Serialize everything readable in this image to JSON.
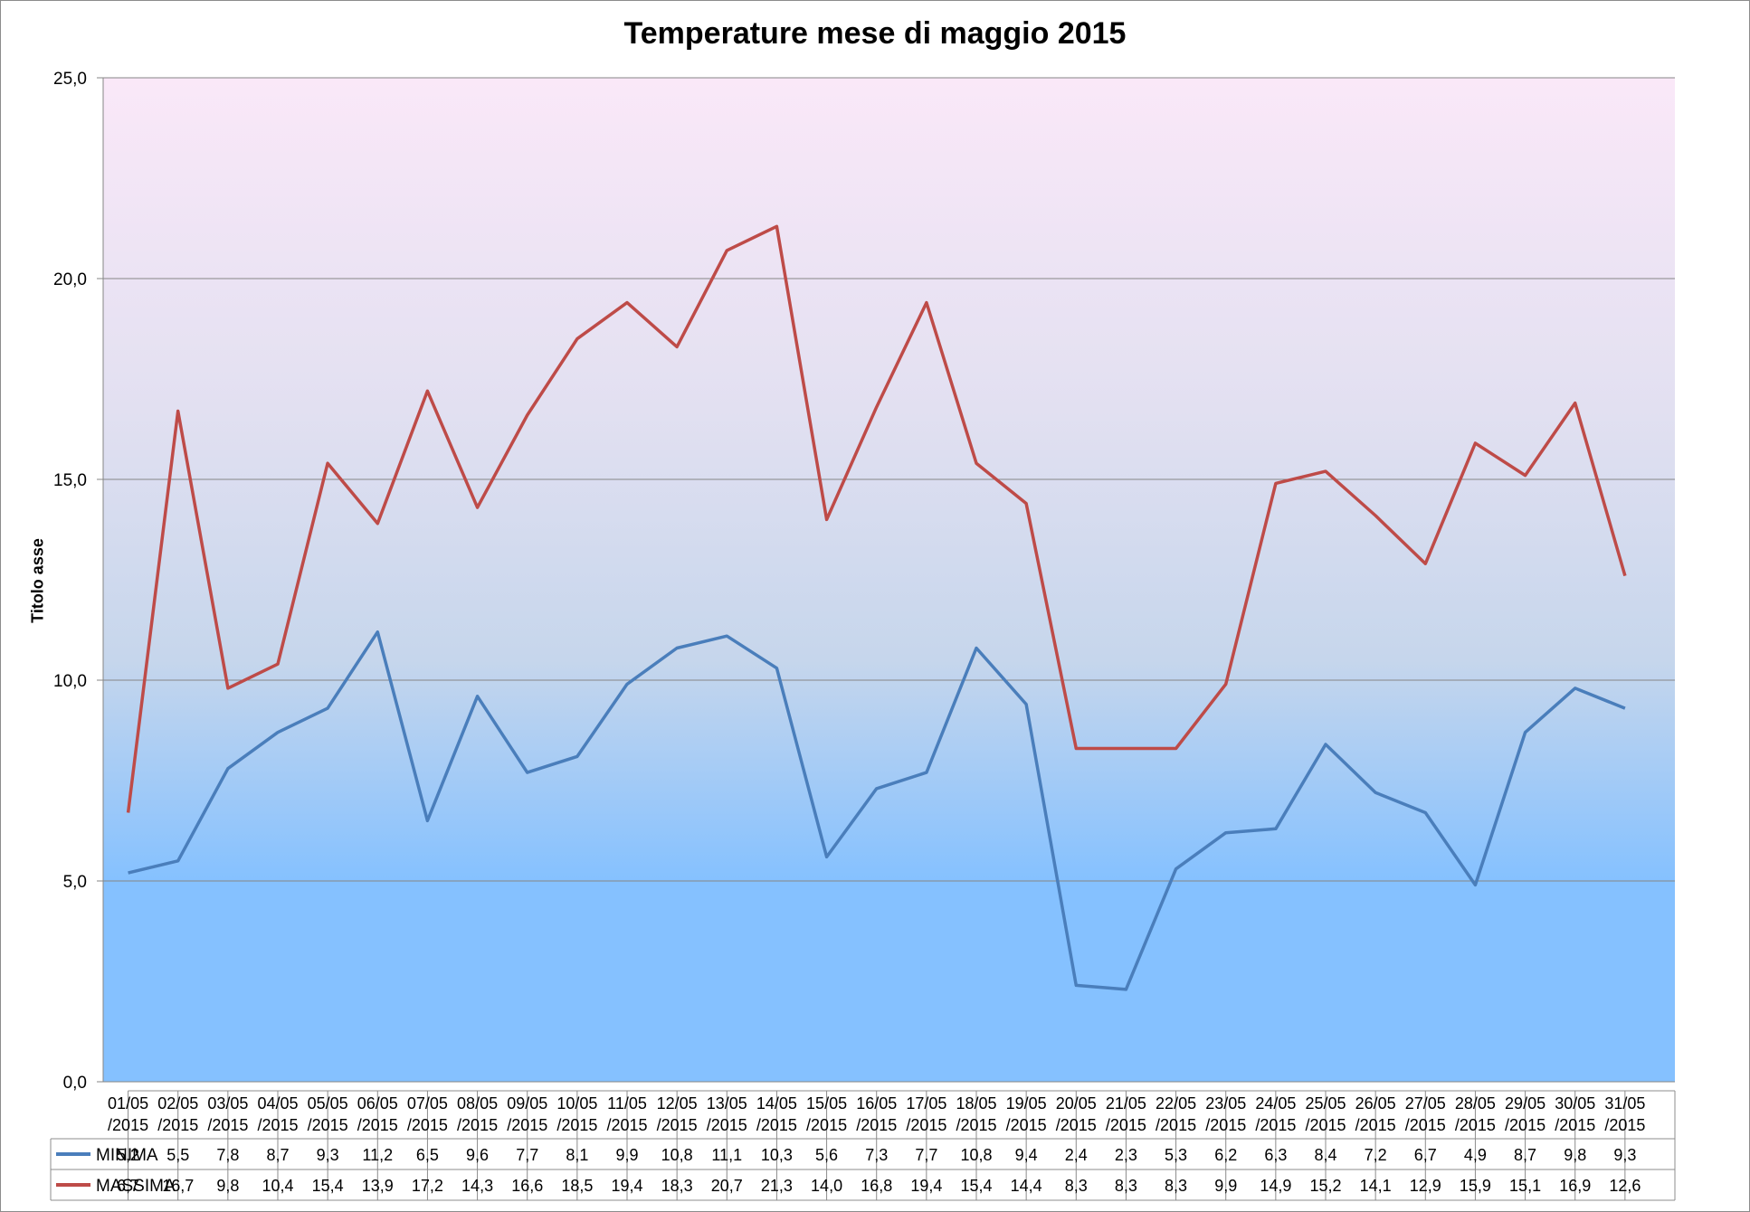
{
  "chart_data": {
    "type": "line",
    "title": "Temperature mese di maggio 2015",
    "xlabel": "",
    "ylabel": "Titolo asse",
    "ylim": [
      0,
      25
    ],
    "yticks": [
      "0,0",
      "5,0",
      "10,0",
      "15,0",
      "20,0",
      "25,0"
    ],
    "grid": true,
    "legend": "data-table",
    "background_gradient": {
      "top": "#fae8f8",
      "bottom": "#85c1ff"
    },
    "categories": [
      "01/05/2015",
      "02/05/2015",
      "03/05/2015",
      "04/05/2015",
      "05/05/2015",
      "06/05/2015",
      "07/05/2015",
      "08/05/2015",
      "09/05/2015",
      "10/05/2015",
      "11/05/2015",
      "12/05/2015",
      "13/05/2015",
      "14/05/2015",
      "15/05/2015",
      "16/05/2015",
      "17/05/2015",
      "18/05/2015",
      "19/05/2015",
      "20/05/2015",
      "21/05/2015",
      "22/05/2015",
      "23/05/2015",
      "24/05/2015",
      "25/05/2015",
      "26/05/2015",
      "27/05/2015",
      "28/05/2015",
      "29/05/2015",
      "30/05/2015",
      "31/05/2015"
    ],
    "series": [
      {
        "name": "MINIMA",
        "color": "#4a7ebb",
        "values": [
          5.2,
          5.5,
          7.8,
          8.7,
          9.3,
          11.2,
          6.5,
          9.6,
          7.7,
          8.1,
          9.9,
          10.8,
          11.1,
          10.3,
          5.6,
          7.3,
          7.7,
          10.8,
          9.4,
          2.4,
          2.3,
          5.3,
          6.2,
          6.3,
          8.4,
          7.2,
          6.7,
          4.9,
          8.7,
          9.8,
          9.3
        ],
        "labels": [
          "5,2",
          "5,5",
          "7,8",
          "8,7",
          "9,3",
          "11,2",
          "6,5",
          "9,6",
          "7,7",
          "8,1",
          "9,9",
          "10,8",
          "11,1",
          "10,3",
          "5,6",
          "7,3",
          "7,7",
          "10,8",
          "9,4",
          "2,4",
          "2,3",
          "5,3",
          "6,2",
          "6,3",
          "8,4",
          "7,2",
          "6,7",
          "4,9",
          "8,7",
          "9,8",
          "9,3"
        ]
      },
      {
        "name": "MASSIMA",
        "color": "#be4b48",
        "values": [
          6.7,
          16.7,
          9.8,
          10.4,
          15.4,
          13.9,
          17.2,
          14.3,
          16.6,
          18.5,
          19.4,
          18.3,
          20.7,
          21.3,
          14.0,
          16.8,
          19.4,
          15.4,
          14.4,
          8.3,
          8.3,
          8.3,
          9.9,
          14.9,
          15.2,
          14.1,
          12.9,
          15.9,
          15.1,
          16.9,
          12.6
        ],
        "labels": [
          "6,7",
          "16,7",
          "9,8",
          "10,4",
          "15,4",
          "13,9",
          "17,2",
          "14,3",
          "16,6",
          "18,5",
          "19,4",
          "18,3",
          "20,7",
          "21,3",
          "14,0",
          "16,8",
          "19,4",
          "15,4",
          "14,4",
          "8,3",
          "8,3",
          "8,3",
          "9,9",
          "14,9",
          "15,2",
          "14,1",
          "12,9",
          "15,9",
          "15,1",
          "16,9",
          "12,6"
        ]
      }
    ]
  }
}
